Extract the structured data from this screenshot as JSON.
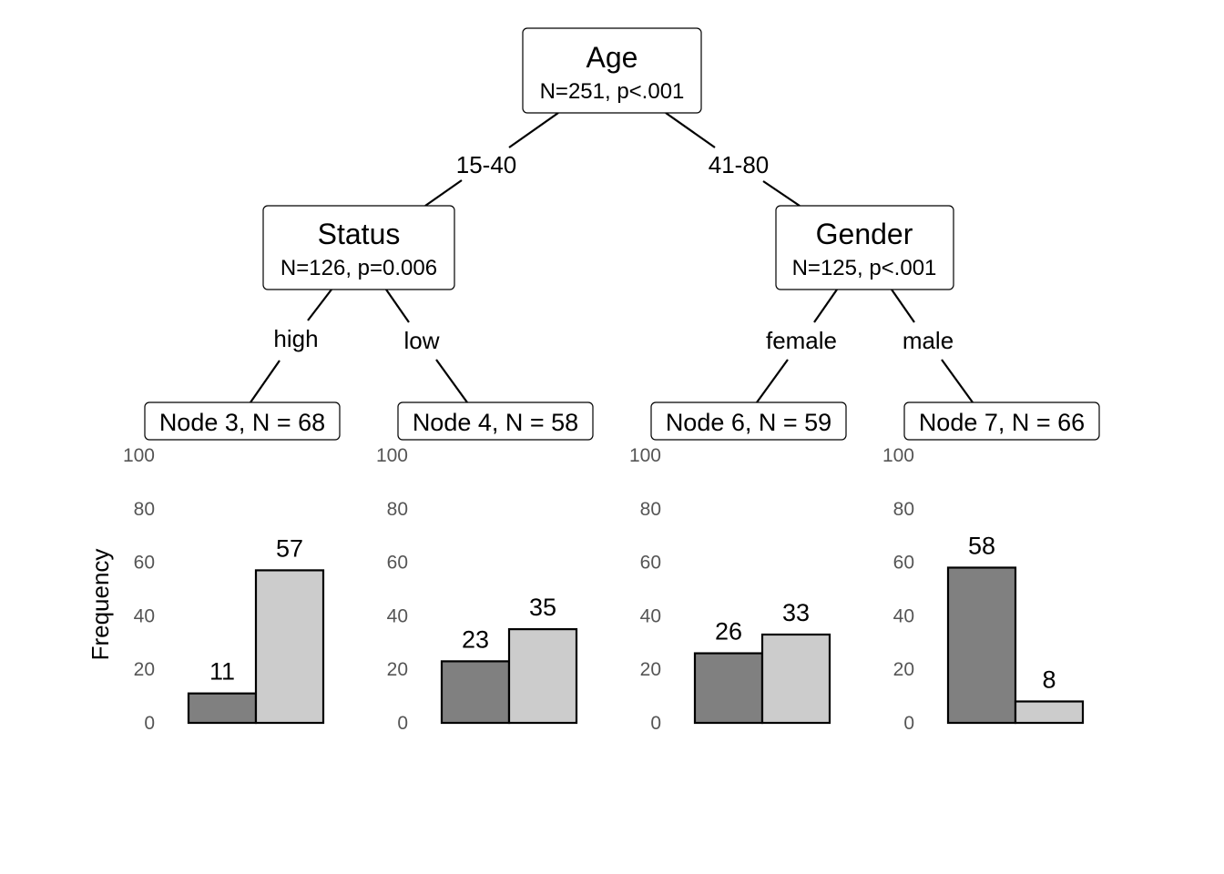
{
  "tree": {
    "root": {
      "title": "Age",
      "stats": "N=251, p<.001"
    },
    "left_inner": {
      "title": "Status",
      "stats": "N=126, p=0.006"
    },
    "right_inner": {
      "title": "Gender",
      "stats": "N=125, p<.001"
    },
    "edges": {
      "root_left": "15-40",
      "root_right": "41-80",
      "status_high": "high",
      "status_low": "low",
      "gender_female": "female",
      "gender_male": "male"
    },
    "leaves": [
      {
        "label": "Node 3, N = 68"
      },
      {
        "label": "Node 4, N = 58"
      },
      {
        "label": "Node 6, N = 59"
      },
      {
        "label": "Node 7, N = 66"
      }
    ]
  },
  "colors": {
    "bar_dark": "#808080",
    "bar_light": "#cccccc"
  },
  "chart_data": {
    "type": "bar",
    "ylabel": "Frequency",
    "ylim": [
      0,
      100
    ],
    "yticks": [
      0,
      20,
      40,
      60,
      80,
      100
    ],
    "panels": [
      {
        "values": [
          11,
          57
        ]
      },
      {
        "values": [
          23,
          35
        ]
      },
      {
        "values": [
          26,
          33
        ]
      },
      {
        "values": [
          58,
          8
        ]
      }
    ]
  }
}
